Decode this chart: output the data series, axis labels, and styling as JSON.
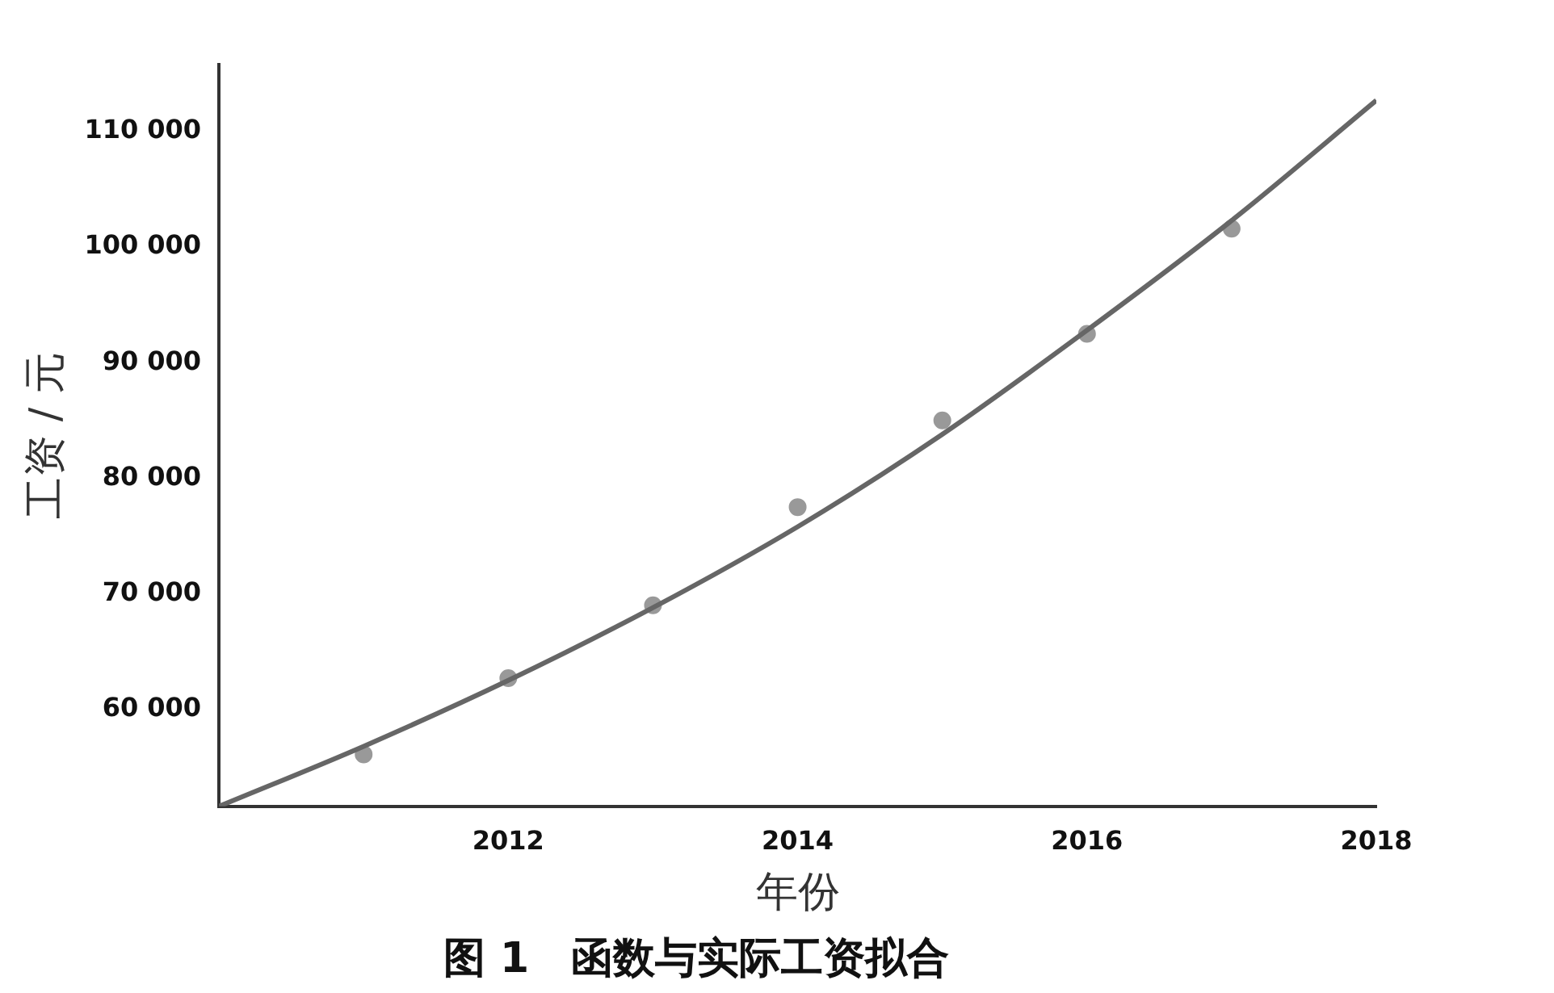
{
  "chart_data": {
    "type": "scatter",
    "title": "图 1　函数与实际工资拟合",
    "xlabel": "年份",
    "ylabel": "工资 / 元",
    "xlim": [
      2010,
      2018
    ],
    "ylim": [
      51600,
      115800
    ],
    "xticks": [
      {
        "value": 2010,
        "label": null
      },
      2012,
      2014,
      2016,
      2018
    ],
    "yticks": [
      {
        "value": 60000,
        "label": "60 000"
      },
      {
        "value": 70000,
        "label": "70 000"
      },
      {
        "value": 80000,
        "label": "80 000"
      },
      {
        "value": 90000,
        "label": "90 000"
      },
      {
        "value": 100000,
        "label": "100 000"
      },
      {
        "value": 110000,
        "label": "110 000"
      }
    ],
    "grid": false,
    "legend": false,
    "series": [
      {
        "type": "line",
        "marker": "none",
        "color": "#666666",
        "x": [
          2010,
          2011,
          2012,
          2013,
          2014,
          2015,
          2016,
          2017,
          2018
        ],
        "values": [
          51600,
          56800,
          62500,
          68800,
          75800,
          83800,
          92800,
          102300,
          112700
        ]
      },
      {
        "marker": "circle",
        "color": "#999999",
        "x": [
          2011,
          2012,
          2013,
          2014,
          2015,
          2016,
          2017
        ],
        "values": [
          56100,
          62700,
          69000,
          77500,
          85000,
          92500,
          101600
        ]
      }
    ]
  }
}
